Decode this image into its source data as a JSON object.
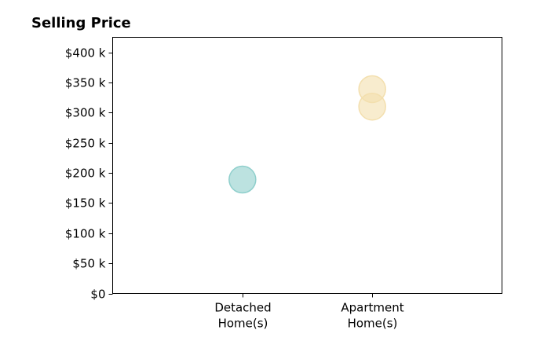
{
  "chart_data": {
    "type": "scatter",
    "title": "Selling Price",
    "xlabel": "",
    "ylabel": "",
    "categories": [
      [
        "Detached",
        "Home(s)"
      ],
      [
        "Apartment",
        "Home(s)"
      ]
    ],
    "x_positions": [
      1,
      2
    ],
    "xlim": [
      0,
      3
    ],
    "ylim": [
      0,
      425000
    ],
    "y_ticks": [
      0,
      50000,
      100000,
      150000,
      200000,
      250000,
      300000,
      350000,
      400000
    ],
    "y_tick_labels": [
      "$0",
      "$50 k",
      "$100 k",
      "$150 k",
      "$200 k",
      "$250 k",
      "$300 k",
      "$350 k",
      "$400 k"
    ],
    "grid": false,
    "legend": "none",
    "series": [
      {
        "category": "Detached Home(s)",
        "color": "#8fcfcc",
        "points": [
          {
            "x": 1,
            "y": 189000
          }
        ]
      },
      {
        "category": "Apartment Home(s)",
        "color": "#f3dfae",
        "points": [
          {
            "x": 2,
            "y": 339000
          },
          {
            "x": 2,
            "y": 310000
          }
        ]
      }
    ]
  }
}
